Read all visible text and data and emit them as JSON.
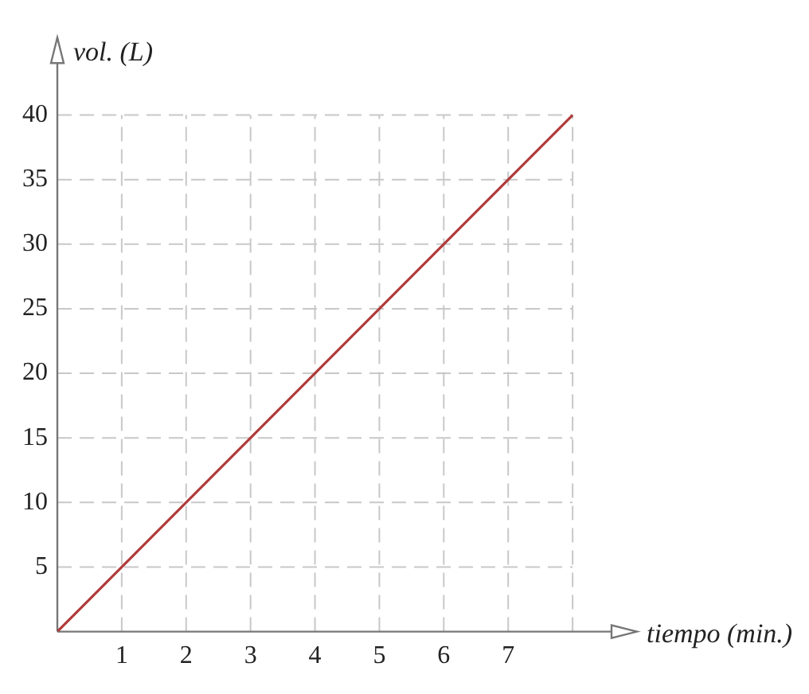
{
  "chart_data": {
    "type": "line",
    "xlabel": "tiempo (min.)",
    "ylabel": "vol. (L)",
    "x": [
      0,
      8
    ],
    "series": [
      {
        "color": "#b03a3a",
        "values": [
          0,
          40
        ]
      }
    ],
    "xlim": [
      0,
      9
    ],
    "ylim": [
      0,
      46
    ],
    "xticks": [
      1,
      2,
      3,
      4,
      5,
      6,
      7,
      {
        "value": 8,
        "label": null
      }
    ],
    "yticks": [
      5,
      10,
      15,
      20,
      25,
      30,
      35,
      40
    ],
    "grid": true,
    "line_style": "solid",
    "marker": "none",
    "legend": false
  }
}
